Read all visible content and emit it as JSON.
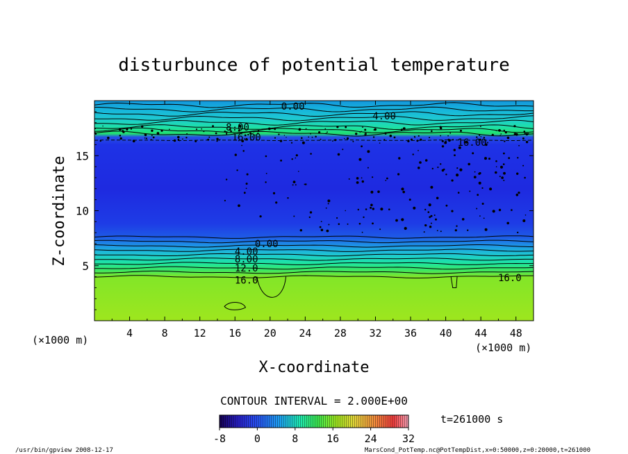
{
  "chart_data": {
    "type": "heatmap",
    "title": "disturbunce of potential temperature",
    "xlabel": "X-coordinate",
    "ylabel": "Z-coordinate",
    "x_unit": "(×1000 m)",
    "y_unit": "",
    "xlim": [
      0,
      50
    ],
    "ylim": [
      0,
      20
    ],
    "x_ticks": [
      4,
      8,
      12,
      16,
      20,
      24,
      28,
      32,
      36,
      40,
      44,
      48
    ],
    "y_ticks": [
      5,
      10,
      15
    ],
    "contour_labels": [
      {
        "text": "0.00",
        "x": 22.6,
        "z": 19.5
      },
      {
        "text": "4.00",
        "x": 33.0,
        "z": 18.6
      },
      {
        "text": "8.00",
        "x": 16.3,
        "z": 17.6
      },
      {
        "text": "16.00",
        "x": 17.3,
        "z": 16.7
      },
      {
        "text": "16.00",
        "x": 43.0,
        "z": 16.2
      },
      {
        "text": "0.00",
        "x": 19.6,
        "z": 7.0
      },
      {
        "text": "4.00",
        "x": 17.3,
        "z": 6.3
      },
      {
        "text": "8.00",
        "x": 17.3,
        "z": 5.6
      },
      {
        "text": "12.0",
        "x": 17.3,
        "z": 4.8
      },
      {
        "text": "16.0",
        "x": 17.3,
        "z": 3.7
      },
      {
        "text": "16.0",
        "x": 47.3,
        "z": 3.9
      }
    ],
    "colorbar": {
      "min": -8,
      "max": 32,
      "ticks": [
        "-8",
        "0",
        "8",
        "16",
        "24",
        "32"
      ]
    },
    "contour_interval_text": "CONTOUR INTERVAL = 2.000E+00",
    "time_text": "t=261000 s",
    "grid": false,
    "legend": "none"
  },
  "footer": {
    "left": "/usr/bin/gpview  2008-12-17",
    "right": "MarsCond_PotTemp.nc@PotTempDist,x=0:50000,z=0:20000,t=261000"
  },
  "colors": {
    "upper_blue": "#1e32e6",
    "layer_green": "#20e070",
    "lower_yellowgreen": "#9ae61e"
  }
}
